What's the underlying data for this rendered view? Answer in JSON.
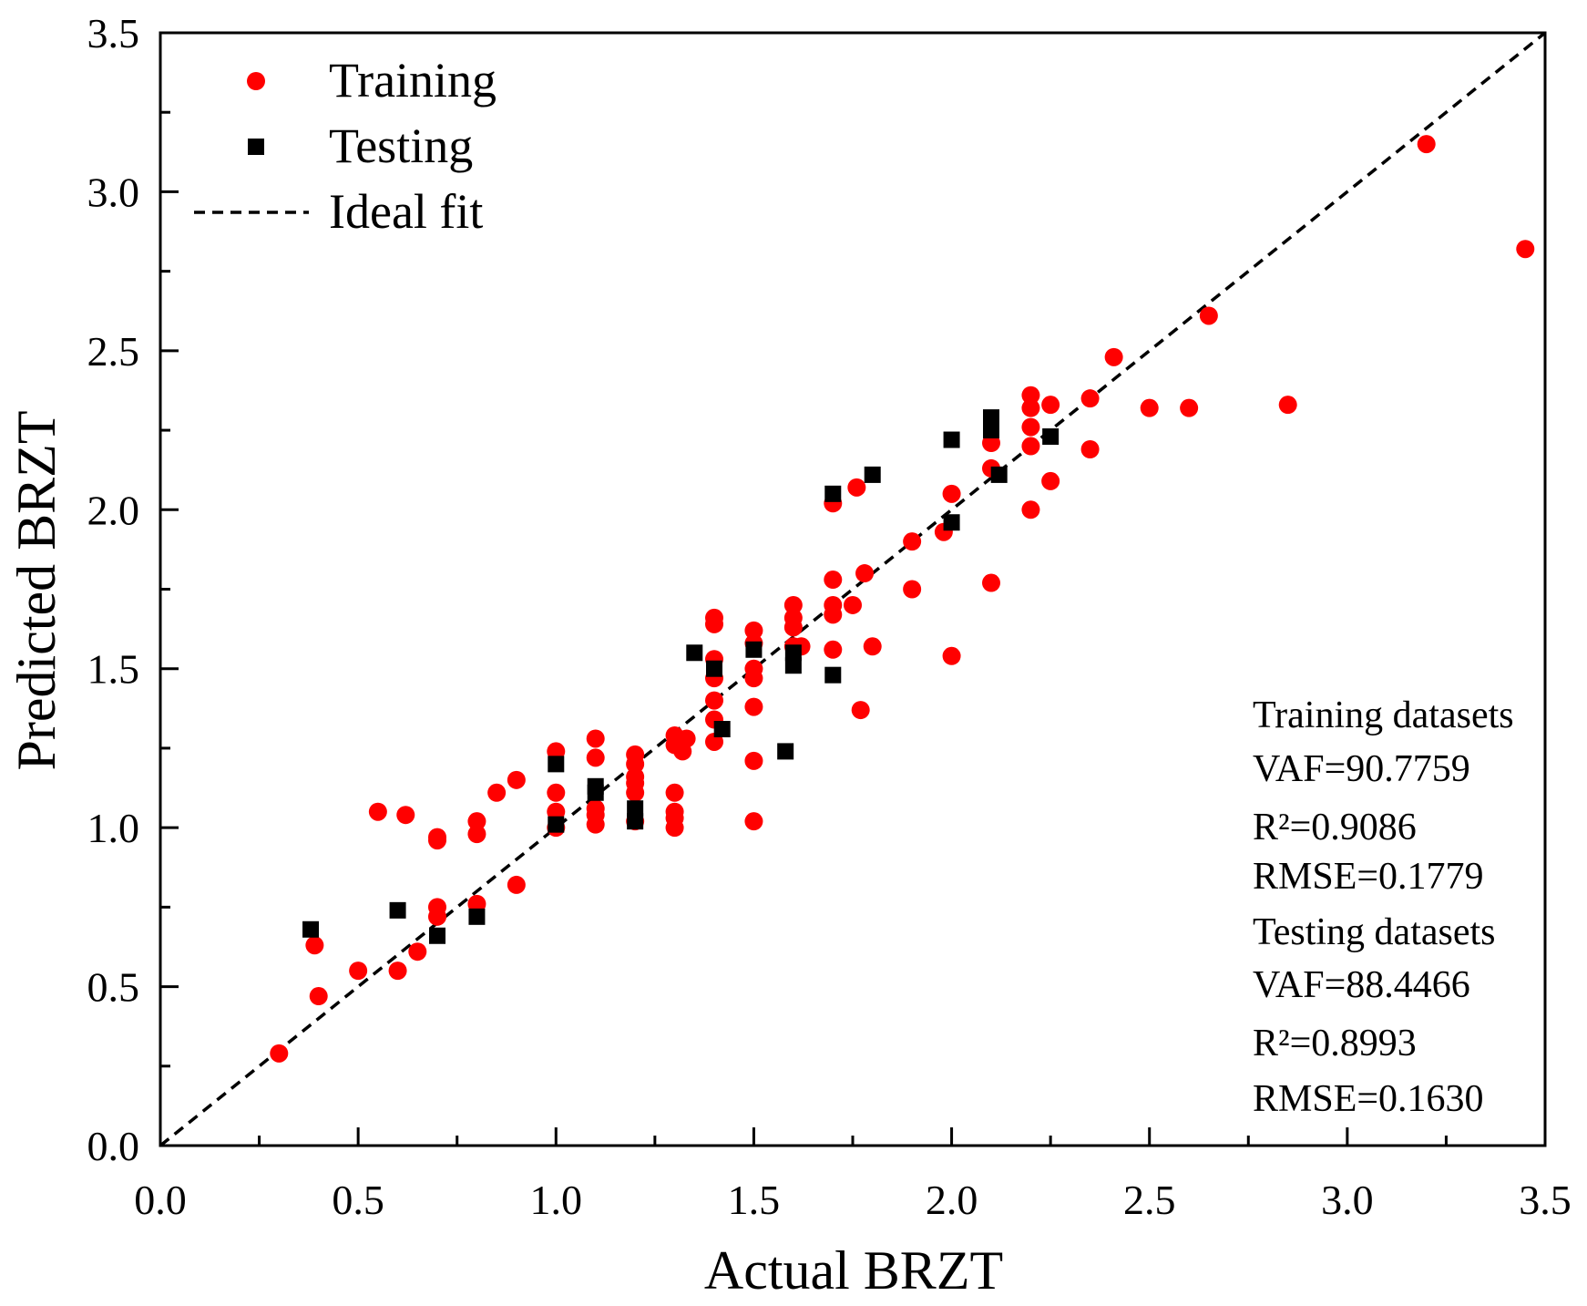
{
  "chart_data": {
    "type": "scatter",
    "xlabel": "Actual BRZT",
    "ylabel": "Predicted BRZT",
    "xlim": [
      0,
      3.5
    ],
    "ylim": [
      0,
      3.5
    ],
    "x_ticks": [
      "0.0",
      "0.5",
      "1.0",
      "1.5",
      "2.0",
      "2.5",
      "3.0",
      "3.5"
    ],
    "y_ticks": [
      "0.0",
      "0.5",
      "1.0",
      "1.5",
      "2.0",
      "2.5",
      "3.0",
      "3.5"
    ],
    "minor_tick_step": 0.25,
    "grid": false,
    "legend_position": "top-left",
    "series": [
      {
        "name": "Training",
        "marker": "circle",
        "color": "#ff0000",
        "points": [
          [
            0.3,
            0.29
          ],
          [
            0.39,
            0.63
          ],
          [
            0.4,
            0.47
          ],
          [
            0.5,
            0.55
          ],
          [
            0.55,
            1.05
          ],
          [
            0.6,
            0.55
          ],
          [
            0.62,
            1.04
          ],
          [
            0.65,
            0.61
          ],
          [
            0.7,
            0.97
          ],
          [
            0.7,
            0.96
          ],
          [
            0.7,
            0.75
          ],
          [
            0.7,
            0.72
          ],
          [
            0.8,
            1.02
          ],
          [
            0.8,
            0.98
          ],
          [
            0.8,
            0.76
          ],
          [
            0.85,
            1.11
          ],
          [
            0.9,
            1.15
          ],
          [
            0.9,
            0.82
          ],
          [
            1.0,
            1.24
          ],
          [
            1.0,
            1.11
          ],
          [
            1.0,
            1.05
          ],
          [
            1.0,
            1.0
          ],
          [
            1.1,
            1.28
          ],
          [
            1.1,
            1.22
          ],
          [
            1.1,
            1.06
          ],
          [
            1.1,
            1.04
          ],
          [
            1.1,
            1.01
          ],
          [
            1.2,
            1.23
          ],
          [
            1.2,
            1.2
          ],
          [
            1.2,
            1.16
          ],
          [
            1.2,
            1.14
          ],
          [
            1.2,
            1.11
          ],
          [
            1.2,
            1.02
          ],
          [
            1.3,
            1.29
          ],
          [
            1.3,
            1.26
          ],
          [
            1.3,
            1.11
          ],
          [
            1.3,
            1.05
          ],
          [
            1.3,
            1.03
          ],
          [
            1.3,
            1.0
          ],
          [
            1.32,
            1.24
          ],
          [
            1.33,
            1.28
          ],
          [
            1.4,
            1.66
          ],
          [
            1.4,
            1.64
          ],
          [
            1.4,
            1.53
          ],
          [
            1.4,
            1.47
          ],
          [
            1.4,
            1.4
          ],
          [
            1.4,
            1.34
          ],
          [
            1.4,
            1.27
          ],
          [
            1.5,
            1.62
          ],
          [
            1.5,
            1.58
          ],
          [
            1.5,
            1.5
          ],
          [
            1.5,
            1.47
          ],
          [
            1.5,
            1.38
          ],
          [
            1.5,
            1.21
          ],
          [
            1.5,
            1.02
          ],
          [
            1.6,
            1.7
          ],
          [
            1.6,
            1.66
          ],
          [
            1.6,
            1.63
          ],
          [
            1.6,
            1.57
          ],
          [
            1.62,
            1.57
          ],
          [
            1.7,
            2.02
          ],
          [
            1.7,
            1.78
          ],
          [
            1.7,
            1.7
          ],
          [
            1.7,
            1.67
          ],
          [
            1.7,
            1.56
          ],
          [
            1.75,
            1.7
          ],
          [
            1.76,
            2.07
          ],
          [
            1.77,
            1.37
          ],
          [
            1.78,
            1.8
          ],
          [
            1.8,
            1.57
          ],
          [
            1.9,
            1.9
          ],
          [
            1.9,
            1.75
          ],
          [
            1.98,
            1.93
          ],
          [
            2.0,
            2.05
          ],
          [
            2.0,
            1.54
          ],
          [
            2.1,
            2.21
          ],
          [
            2.1,
            2.13
          ],
          [
            2.1,
            1.77
          ],
          [
            2.2,
            2.36
          ],
          [
            2.2,
            2.32
          ],
          [
            2.2,
            2.26
          ],
          [
            2.2,
            2.2
          ],
          [
            2.2,
            2.0
          ],
          [
            2.25,
            2.33
          ],
          [
            2.25,
            2.09
          ],
          [
            2.35,
            2.35
          ],
          [
            2.35,
            2.19
          ],
          [
            2.41,
            2.48
          ],
          [
            2.5,
            2.32
          ],
          [
            2.6,
            2.32
          ],
          [
            2.65,
            2.61
          ],
          [
            2.85,
            2.33
          ],
          [
            3.2,
            3.15
          ],
          [
            3.45,
            2.82
          ]
        ]
      },
      {
        "name": "Testing",
        "marker": "square",
        "color": "#000000",
        "points": [
          [
            0.38,
            0.68
          ],
          [
            0.6,
            0.74
          ],
          [
            0.7,
            0.66
          ],
          [
            0.8,
            0.72
          ],
          [
            1.0,
            1.2
          ],
          [
            1.0,
            1.01
          ],
          [
            1.1,
            1.13
          ],
          [
            1.1,
            1.11
          ],
          [
            1.2,
            1.06
          ],
          [
            1.2,
            1.02
          ],
          [
            1.35,
            1.55
          ],
          [
            1.4,
            1.5
          ],
          [
            1.42,
            1.31
          ],
          [
            1.5,
            1.56
          ],
          [
            1.58,
            1.24
          ],
          [
            1.6,
            1.55
          ],
          [
            1.6,
            1.51
          ],
          [
            1.7,
            2.05
          ],
          [
            1.7,
            1.48
          ],
          [
            1.8,
            2.11
          ],
          [
            2.0,
            2.22
          ],
          [
            2.0,
            1.96
          ],
          [
            2.1,
            2.29
          ],
          [
            2.1,
            2.25
          ],
          [
            2.12,
            2.11
          ],
          [
            2.25,
            2.23
          ]
        ]
      },
      {
        "name": "Ideal fit",
        "style": "dashed-line",
        "color": "#000000",
        "points": [
          [
            0,
            0
          ],
          [
            3.5,
            3.5
          ]
        ]
      }
    ],
    "annotations": {
      "training_heading": "Training datasets",
      "training_vaf": "VAF=90.7759",
      "training_r2": "R²=0.9086",
      "training_rmse": "RMSE=0.1779",
      "testing_heading": "Testing datasets",
      "testing_vaf": "VAF=88.4466",
      "testing_r2": "R²=0.8993",
      "testing_rmse": "RMSE=0.1630"
    }
  }
}
